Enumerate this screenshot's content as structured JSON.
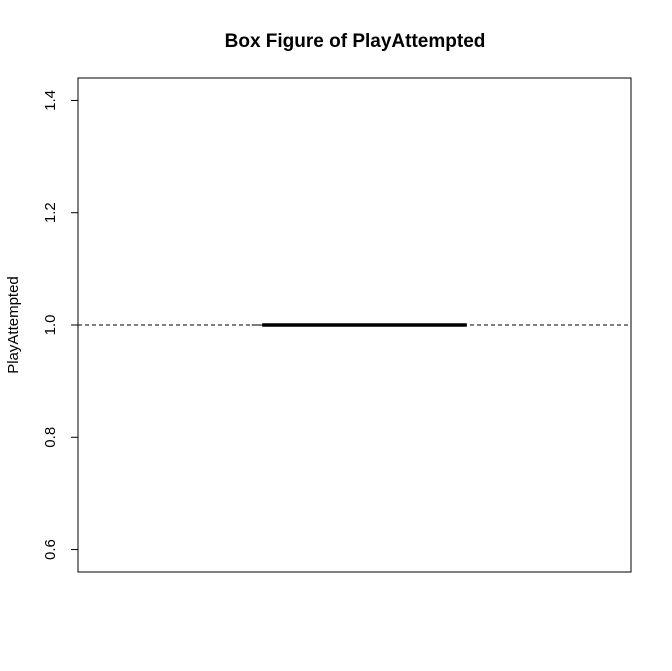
{
  "chart_data": {
    "type": "box",
    "title": "Box Figure of PlayAttempted",
    "xlabel": "",
    "ylabel": "PlayAttempted",
    "ylim": [
      0.56,
      1.44
    ],
    "yticks": [
      0.6,
      0.8,
      1.0,
      1.2,
      1.4
    ],
    "ytick_labels": [
      "0.6",
      "0.8",
      "1.0",
      "1.2",
      "1.4"
    ],
    "box": {
      "min": 1.0,
      "q1": 1.0,
      "median": 1.0,
      "q3": 1.0,
      "max": 1.0
    },
    "grid": false,
    "legend": "none",
    "colors": {
      "lines": "#000000",
      "background": "#ffffff"
    }
  }
}
